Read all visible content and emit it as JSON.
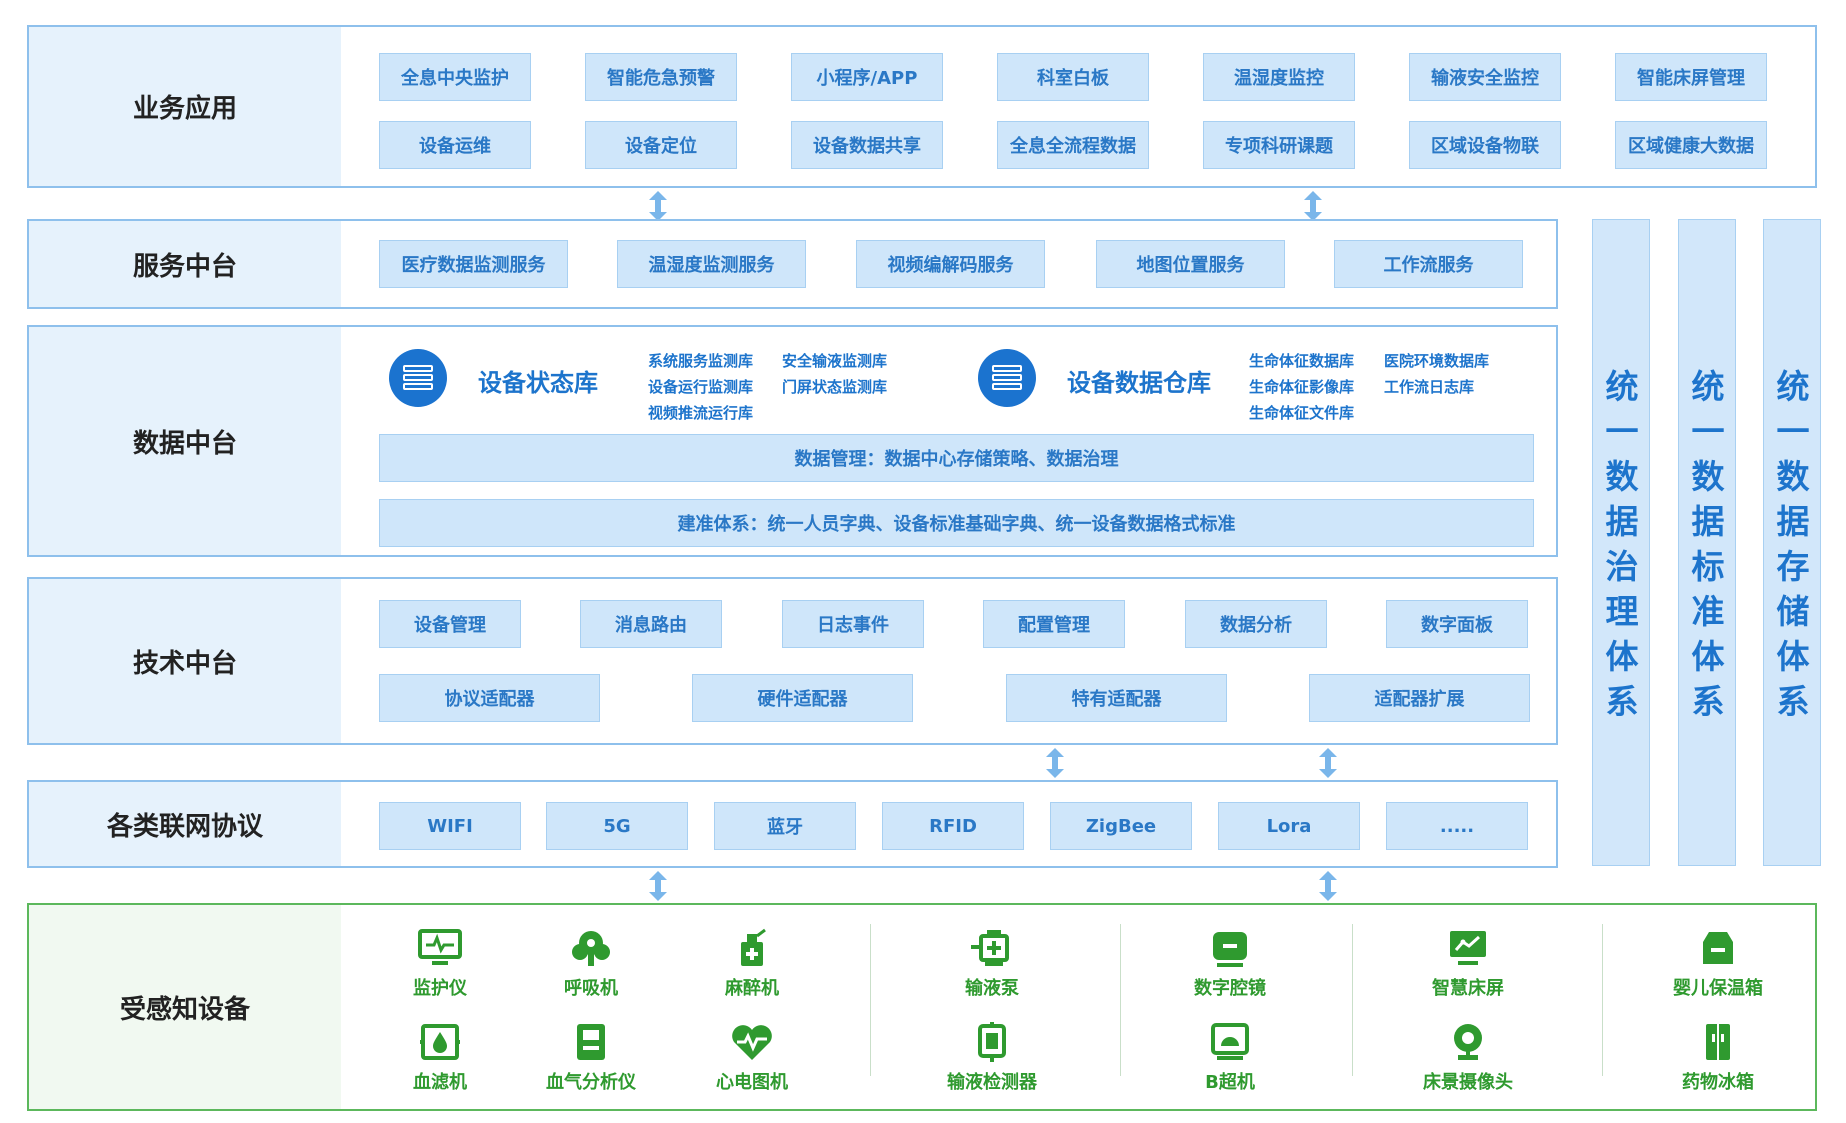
{
  "layers": {
    "business": "业务应用",
    "service": "服务中台",
    "data": "数据中台",
    "tech": "技术中台",
    "protocol": "各类联网协议",
    "devices": "受感知设备"
  },
  "business_apps": [
    "全息中央监护",
    "智能危急预警",
    "小程序/APP",
    "科室白板",
    "温湿度监控",
    "输液安全监控",
    "智能床屏管理",
    "设备运维",
    "设备定位",
    "设备数据共享",
    "全息全流程数据",
    "专项科研课题",
    "区域设备物联",
    "区域健康大数据"
  ],
  "services": [
    "医疗数据监测服务",
    "温湿度监测服务",
    "视频编解码服务",
    "地图位置服务",
    "工作流服务"
  ],
  "data_platform": {
    "db1": {
      "title": "设备状态库",
      "items": [
        "系统服务监测库",
        "安全输液监测库",
        "设备运行监测库",
        "门屏状态监测库",
        "视频推流运行库"
      ]
    },
    "db2": {
      "title": "设备数据仓库",
      "items": [
        "生命体征数据库",
        "医院环境数据库",
        "生命体征影像库",
        "工作流日志库",
        "生命体征文件库"
      ]
    },
    "management": "数据管理：数据中心存储策略、数据治理",
    "standard": "建准体系：统一人员字典、设备标准基础字典、统一设备数据格式标准"
  },
  "tech_row1": [
    "设备管理",
    "消息路由",
    "日志事件",
    "配置管理",
    "数据分析",
    "数字面板"
  ],
  "tech_row2": [
    "协议适配器",
    "硬件适配器",
    "特有适配器",
    "适配器扩展"
  ],
  "protocols": [
    "WIFI",
    "5G",
    "蓝牙",
    "RFID",
    "ZigBee",
    "Lora",
    "....."
  ],
  "devices": [
    {
      "label": "监护仪",
      "icon": "monitor-icon"
    },
    {
      "label": "呼吸机",
      "icon": "ventilator-icon"
    },
    {
      "label": "麻醉机",
      "icon": "anesthesia-icon"
    },
    {
      "label": "输液泵",
      "icon": "infusion-pump-icon"
    },
    {
      "label": "数字腔镜",
      "icon": "endoscope-icon"
    },
    {
      "label": "智慧床屏",
      "icon": "bed-screen-icon"
    },
    {
      "label": "婴儿保温箱",
      "icon": "incubator-icon"
    },
    {
      "label": "血滤机",
      "icon": "hemofilter-icon"
    },
    {
      "label": "血气分析仪",
      "icon": "blood-gas-icon"
    },
    {
      "label": "心电图机",
      "icon": "ecg-icon"
    },
    {
      "label": "输液检测器",
      "icon": "infusion-detector-icon"
    },
    {
      "label": "B超机",
      "icon": "ultrasound-icon"
    },
    {
      "label": "床景摄像头",
      "icon": "camera-icon"
    },
    {
      "label": "药物冰箱",
      "icon": "fridge-icon"
    }
  ],
  "systems": [
    [
      "统",
      "一",
      "数",
      "据",
      "治",
      "理",
      "体",
      "系"
    ],
    [
      "统",
      "一",
      "数",
      "据",
      "标",
      "准",
      "体",
      "系"
    ],
    [
      "统",
      "一",
      "数",
      "据",
      "存",
      "储",
      "体",
      "系"
    ]
  ],
  "colors": {
    "accent": "#1d74cc",
    "box": "#cfe6fa",
    "border": "#8ec0ec",
    "device": "#2f9a2f",
    "device_border": "#5cb85c"
  }
}
